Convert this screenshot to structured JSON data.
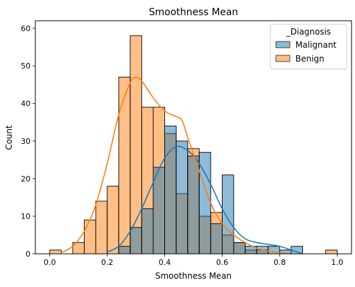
{
  "chart_data": {
    "type": "bar",
    "title": "Smoothness Mean",
    "xlabel": "Smoothness Mean",
    "ylabel": "Count",
    "xlim": [
      -0.05,
      1.05
    ],
    "ylim": [
      0,
      62
    ],
    "xticks": [
      "0.0",
      "0.2",
      "0.4",
      "0.6",
      "0.8",
      "1.0"
    ],
    "yticks": [
      "0",
      "10",
      "20",
      "30",
      "40",
      "50",
      "60"
    ],
    "grid": false,
    "legend_position": "top-right",
    "legend_title": "_Diagnosis",
    "bin_edges": [
      0.0,
      0.04,
      0.08,
      0.12,
      0.16,
      0.2,
      0.24,
      0.28,
      0.32,
      0.36,
      0.4,
      0.44,
      0.48,
      0.52,
      0.56,
      0.6,
      0.64,
      0.68,
      0.72,
      0.76,
      0.8,
      0.84,
      0.88,
      0.92,
      0.96,
      1.0
    ],
    "series": [
      {
        "name": "Malignant",
        "color": "#1f77b4",
        "values": [
          0,
          0,
          0,
          0,
          0,
          0,
          2,
          7,
          12,
          23,
          34,
          30,
          26,
          27,
          8,
          21,
          3,
          2,
          2,
          2,
          1,
          2,
          0,
          0,
          0
        ],
        "kde_x": [
          0.2,
          0.24,
          0.28,
          0.32,
          0.36,
          0.4,
          0.44,
          0.48,
          0.52,
          0.56,
          0.6,
          0.64,
          0.68,
          0.72,
          0.76,
          0.8,
          0.84,
          0.88
        ],
        "kde_y": [
          0.5,
          2,
          6,
          12,
          19,
          25.5,
          28.5,
          27.5,
          24,
          18.5,
          12,
          7,
          4,
          3,
          2.5,
          2,
          1,
          0
        ]
      },
      {
        "name": "Benign",
        "color": "#ff7f0e",
        "values": [
          1,
          0,
          3,
          9,
          14,
          18,
          47,
          58,
          39,
          39,
          32,
          16,
          28,
          10,
          11,
          5,
          3,
          1,
          1,
          0,
          0,
          0,
          0,
          0,
          1
        ],
        "kde_x": [
          0.04,
          0.08,
          0.12,
          0.16,
          0.2,
          0.24,
          0.28,
          0.3,
          0.32,
          0.36,
          0.4,
          0.44,
          0.46,
          0.48,
          0.52,
          0.56,
          0.6,
          0.64,
          0.68,
          0.72,
          0.76,
          0.8,
          0.84
        ],
        "kde_y": [
          0.3,
          2,
          6,
          13,
          24,
          37,
          45.5,
          47,
          46,
          41.5,
          38,
          36.5,
          35.5,
          31,
          22,
          13.5,
          8,
          5,
          3,
          1.5,
          0.7,
          0.3,
          0
        ]
      }
    ]
  }
}
